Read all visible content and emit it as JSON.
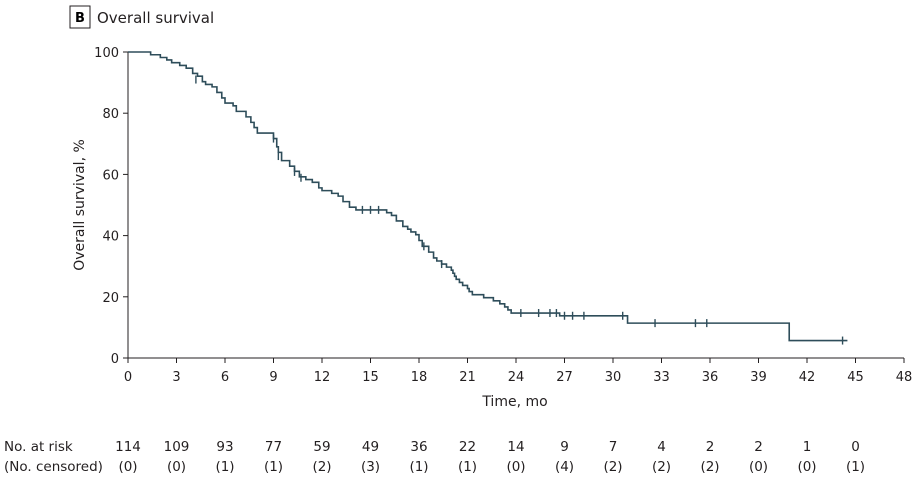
{
  "chart_data": {
    "type": "line",
    "subtype": "kaplan-meier-step",
    "panel_label": "B",
    "title": "Overall survival",
    "xlabel": "Time, mo",
    "ylabel": "Overall survival, %",
    "xlim": [
      0,
      48
    ],
    "ylim": [
      0,
      100
    ],
    "x_ticks": [
      0,
      3,
      6,
      9,
      12,
      15,
      18,
      21,
      24,
      27,
      30,
      33,
      36,
      39,
      42,
      45,
      48
    ],
    "y_ticks": [
      0,
      20,
      40,
      60,
      80,
      100
    ],
    "grid": false,
    "series": [
      {
        "color": "#2e4d5a",
        "steps": [
          [
            0,
            100
          ],
          [
            1.4,
            99.1
          ],
          [
            2.0,
            98.2
          ],
          [
            2.4,
            97.4
          ],
          [
            2.7,
            96.5
          ],
          [
            3.2,
            95.6
          ],
          [
            3.6,
            94.7
          ],
          [
            4.0,
            93.0
          ],
          [
            4.3,
            92.1
          ],
          [
            4.6,
            90.3
          ],
          [
            4.8,
            89.4
          ],
          [
            5.2,
            88.6
          ],
          [
            5.5,
            86.8
          ],
          [
            5.8,
            85.0
          ],
          [
            6.0,
            83.3
          ],
          [
            6.5,
            82.4
          ],
          [
            6.7,
            80.6
          ],
          [
            7.3,
            78.8
          ],
          [
            7.6,
            77.0
          ],
          [
            7.8,
            75.3
          ],
          [
            8.0,
            73.5
          ],
          [
            9.0,
            71.7
          ],
          [
            9.2,
            69.0
          ],
          [
            9.3,
            67.2
          ],
          [
            9.5,
            64.5
          ],
          [
            10.0,
            62.7
          ],
          [
            10.3,
            61.0
          ],
          [
            10.6,
            59.2
          ],
          [
            11.0,
            58.3
          ],
          [
            11.4,
            57.4
          ],
          [
            11.8,
            55.6
          ],
          [
            12.0,
            54.7
          ],
          [
            12.6,
            53.8
          ],
          [
            13.0,
            52.9
          ],
          [
            13.3,
            51.1
          ],
          [
            13.7,
            49.3
          ],
          [
            14.1,
            48.4
          ],
          [
            16.0,
            47.5
          ],
          [
            16.3,
            46.6
          ],
          [
            16.6,
            44.8
          ],
          [
            17.0,
            43.0
          ],
          [
            17.3,
            42.1
          ],
          [
            17.5,
            41.2
          ],
          [
            17.8,
            40.3
          ],
          [
            18.0,
            38.4
          ],
          [
            18.2,
            36.5
          ],
          [
            18.6,
            34.6
          ],
          [
            18.9,
            32.7
          ],
          [
            19.1,
            31.7
          ],
          [
            19.4,
            30.7
          ],
          [
            19.7,
            29.7
          ],
          [
            20.0,
            28.7
          ],
          [
            20.1,
            27.7
          ],
          [
            20.2,
            26.7
          ],
          [
            20.3,
            25.7
          ],
          [
            20.5,
            24.7
          ],
          [
            20.7,
            23.7
          ],
          [
            21.0,
            22.7
          ],
          [
            21.1,
            21.7
          ],
          [
            21.3,
            20.7
          ],
          [
            22.0,
            19.7
          ],
          [
            22.6,
            18.7
          ],
          [
            23.0,
            17.7
          ],
          [
            23.3,
            16.7
          ],
          [
            23.5,
            15.7
          ],
          [
            23.7,
            14.7
          ],
          [
            26.7,
            13.8
          ],
          [
            30.9,
            11.4
          ],
          [
            40.9,
            5.7
          ],
          [
            44.5,
            5.7
          ]
        ],
        "censored": [
          [
            4.2,
            91.0
          ],
          [
            9.0,
            71.7
          ],
          [
            9.3,
            66.0
          ],
          [
            10.3,
            60.8
          ],
          [
            10.7,
            58.9
          ],
          [
            14.5,
            48.4
          ],
          [
            15.0,
            48.4
          ],
          [
            15.5,
            48.4
          ],
          [
            18.3,
            36.5
          ],
          [
            19.4,
            30.7
          ],
          [
            24.3,
            14.7
          ],
          [
            25.4,
            14.7
          ],
          [
            26.1,
            14.7
          ],
          [
            26.5,
            14.7
          ],
          [
            27.0,
            13.8
          ],
          [
            27.5,
            13.8
          ],
          [
            28.2,
            13.8
          ],
          [
            30.6,
            13.8
          ],
          [
            32.6,
            11.4
          ],
          [
            35.1,
            11.4
          ],
          [
            35.8,
            11.4
          ],
          [
            44.2,
            5.7
          ]
        ]
      }
    ],
    "risk_table": {
      "row1_label": "No. at risk",
      "row2_label": "(No. censored)",
      "times": [
        0,
        3,
        6,
        9,
        12,
        15,
        18,
        21,
        24,
        27,
        30,
        33,
        36,
        39,
        42,
        45
      ],
      "at_risk": [
        "114",
        "109",
        "93",
        "77",
        "59",
        "49",
        "36",
        "22",
        "14",
        "9",
        "7",
        "4",
        "2",
        "2",
        "1",
        "0"
      ],
      "censored": [
        "(0)",
        "(0)",
        "(1)",
        "(1)",
        "(2)",
        "(3)",
        "(1)",
        "(1)",
        "(0)",
        "(4)",
        "(2)",
        "(2)",
        "(2)",
        "(0)",
        "(0)",
        "(1)"
      ]
    }
  }
}
